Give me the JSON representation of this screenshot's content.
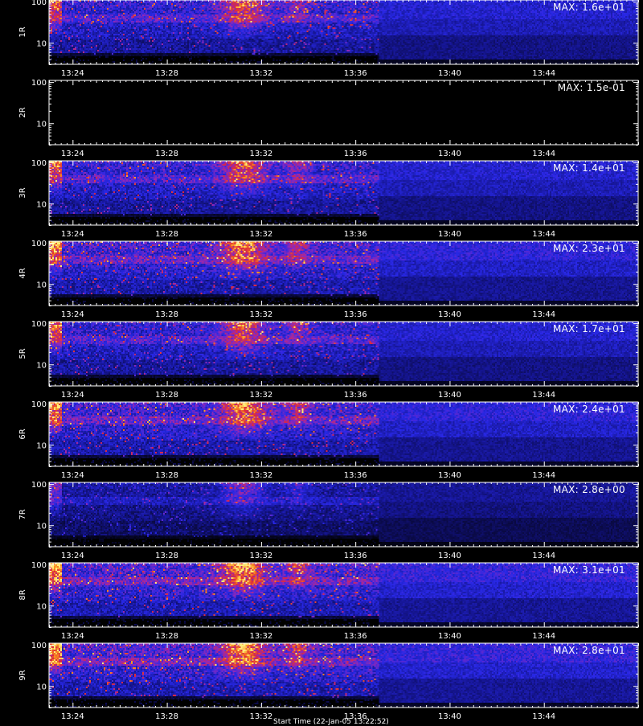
{
  "chart_data": {
    "type": "heatmap",
    "panels": [
      {
        "label": "1R",
        "max_label": "MAX:",
        "max_value": "1.6e+01",
        "intensity": 0.85
      },
      {
        "label": "2R",
        "max_label": "MAX:",
        "max_value": "1.5e-01",
        "intensity": 0.0
      },
      {
        "label": "3R",
        "max_label": "MAX:",
        "max_value": "1.4e+01",
        "intensity": 0.85
      },
      {
        "label": "4R",
        "max_label": "MAX:",
        "max_value": "2.3e+01",
        "intensity": 0.95
      },
      {
        "label": "5R",
        "max_label": "MAX:",
        "max_value": "1.7e+01",
        "intensity": 0.85
      },
      {
        "label": "6R",
        "max_label": "MAX:",
        "max_value": "2.4e+01",
        "intensity": 0.95
      },
      {
        "label": "7R",
        "max_label": "MAX:",
        "max_value": "2.8e+00",
        "intensity": 0.55
      },
      {
        "label": "8R",
        "max_label": "MAX:",
        "max_value": "3.1e+01",
        "intensity": 1.0
      },
      {
        "label": "9R",
        "max_label": "MAX:",
        "max_value": "2.8e+01",
        "intensity": 1.0
      }
    ],
    "x_ticks": [
      "13:24",
      "13:28",
      "13:32",
      "13:36",
      "13:40",
      "13:44"
    ],
    "x_tick_minutes": [
      24,
      28,
      32,
      36,
      40,
      44
    ],
    "x_range_minutes": [
      23,
      48
    ],
    "data_end_minute": 37,
    "y_ticks": [
      "100",
      "10"
    ],
    "y_tick_values": [
      100,
      10
    ],
    "y_range": [
      3,
      110
    ],
    "y_scale": "log",
    "burst_center_minute": 31.2,
    "colors": {
      "background": "#000000",
      "axis": "#ffffff",
      "low": "#1010c0",
      "high": "#ffcc33"
    }
  },
  "footer_text": "Start Time (22-Jan-05 13:22:52)"
}
